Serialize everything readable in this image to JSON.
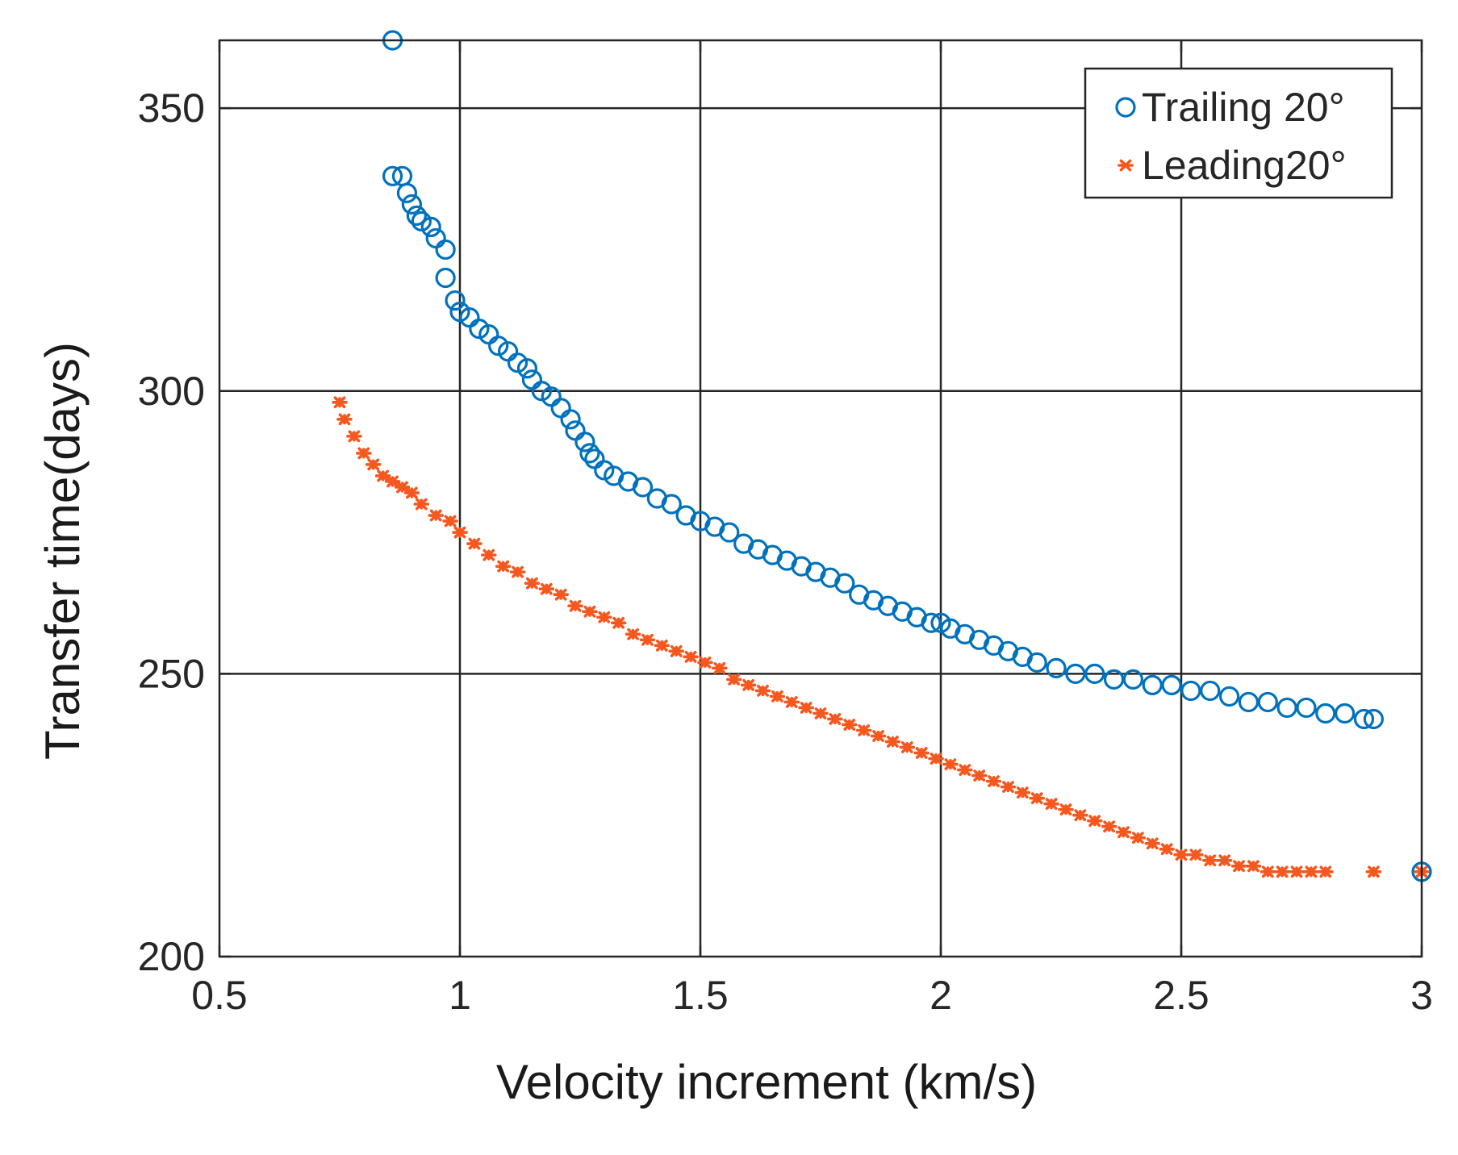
{
  "chart_data": {
    "type": "scatter",
    "title": "",
    "xlabel": "Velocity increment  (km/s)",
    "ylabel": "Transfer time(days)",
    "xlim": [
      0.5,
      3
    ],
    "ylim": [
      200,
      362
    ],
    "xticks": [
      0.5,
      1,
      1.5,
      2,
      2.5,
      3
    ],
    "xtick_labels": [
      "0.5",
      "1",
      "1.5",
      "2",
      "2.5",
      "3"
    ],
    "yticks": [
      200,
      250,
      300,
      350
    ],
    "ytick_labels": [
      "200",
      "250",
      "300",
      "350"
    ],
    "grid": true,
    "legend_position": "top-right",
    "series": [
      {
        "name": "Trailing 20°",
        "marker": "circle",
        "color": "#0072BD",
        "points": [
          [
            0.86,
            362
          ],
          [
            0.86,
            338
          ],
          [
            0.88,
            338
          ],
          [
            0.89,
            335
          ],
          [
            0.9,
            333
          ],
          [
            0.91,
            331
          ],
          [
            0.92,
            330
          ],
          [
            0.94,
            329
          ],
          [
            0.95,
            327
          ],
          [
            0.97,
            325
          ],
          [
            0.97,
            320
          ],
          [
            0.99,
            316
          ],
          [
            1.0,
            314
          ],
          [
            1.02,
            313
          ],
          [
            1.04,
            311
          ],
          [
            1.06,
            310
          ],
          [
            1.08,
            308
          ],
          [
            1.1,
            307
          ],
          [
            1.12,
            305
          ],
          [
            1.14,
            304
          ],
          [
            1.15,
            302
          ],
          [
            1.17,
            300
          ],
          [
            1.19,
            299
          ],
          [
            1.21,
            297
          ],
          [
            1.23,
            295
          ],
          [
            1.24,
            293
          ],
          [
            1.26,
            291
          ],
          [
            1.27,
            289
          ],
          [
            1.28,
            288
          ],
          [
            1.3,
            286
          ],
          [
            1.32,
            285
          ],
          [
            1.35,
            284
          ],
          [
            1.38,
            283
          ],
          [
            1.41,
            281
          ],
          [
            1.44,
            280
          ],
          [
            1.47,
            278
          ],
          [
            1.5,
            277
          ],
          [
            1.53,
            276
          ],
          [
            1.56,
            275
          ],
          [
            1.59,
            273
          ],
          [
            1.62,
            272
          ],
          [
            1.65,
            271
          ],
          [
            1.68,
            270
          ],
          [
            1.71,
            269
          ],
          [
            1.74,
            268
          ],
          [
            1.77,
            267
          ],
          [
            1.8,
            266
          ],
          [
            1.83,
            264
          ],
          [
            1.86,
            263
          ],
          [
            1.89,
            262
          ],
          [
            1.92,
            261
          ],
          [
            1.95,
            260
          ],
          [
            1.98,
            259
          ],
          [
            2.0,
            259
          ],
          [
            2.02,
            258
          ],
          [
            2.05,
            257
          ],
          [
            2.08,
            256
          ],
          [
            2.11,
            255
          ],
          [
            2.14,
            254
          ],
          [
            2.17,
            253
          ],
          [
            2.2,
            252
          ],
          [
            2.24,
            251
          ],
          [
            2.28,
            250
          ],
          [
            2.32,
            250
          ],
          [
            2.36,
            249
          ],
          [
            2.4,
            249
          ],
          [
            2.44,
            248
          ],
          [
            2.48,
            248
          ],
          [
            2.52,
            247
          ],
          [
            2.56,
            247
          ],
          [
            2.6,
            246
          ],
          [
            2.64,
            245
          ],
          [
            2.68,
            245
          ],
          [
            2.72,
            244
          ],
          [
            2.76,
            244
          ],
          [
            2.8,
            243
          ],
          [
            2.84,
            243
          ],
          [
            2.88,
            242
          ],
          [
            2.9,
            242
          ],
          [
            3.0,
            215
          ]
        ]
      },
      {
        "name": "Leading20°",
        "marker": "asterisk",
        "color": "#F5581F",
        "points": [
          [
            0.75,
            298
          ],
          [
            0.76,
            295
          ],
          [
            0.78,
            292
          ],
          [
            0.8,
            289
          ],
          [
            0.82,
            287
          ],
          [
            0.84,
            285
          ],
          [
            0.86,
            284
          ],
          [
            0.88,
            283
          ],
          [
            0.9,
            282
          ],
          [
            0.92,
            280
          ],
          [
            0.95,
            278
          ],
          [
            0.98,
            277
          ],
          [
            1.0,
            275
          ],
          [
            1.03,
            273
          ],
          [
            1.06,
            271
          ],
          [
            1.09,
            269
          ],
          [
            1.12,
            268
          ],
          [
            1.15,
            266
          ],
          [
            1.18,
            265
          ],
          [
            1.21,
            264
          ],
          [
            1.24,
            262
          ],
          [
            1.27,
            261
          ],
          [
            1.3,
            260
          ],
          [
            1.33,
            259
          ],
          [
            1.36,
            257
          ],
          [
            1.39,
            256
          ],
          [
            1.42,
            255
          ],
          [
            1.45,
            254
          ],
          [
            1.48,
            253
          ],
          [
            1.51,
            252
          ],
          [
            1.54,
            251
          ],
          [
            1.57,
            249
          ],
          [
            1.6,
            248
          ],
          [
            1.63,
            247
          ],
          [
            1.66,
            246
          ],
          [
            1.69,
            245
          ],
          [
            1.72,
            244
          ],
          [
            1.75,
            243
          ],
          [
            1.78,
            242
          ],
          [
            1.81,
            241
          ],
          [
            1.84,
            240
          ],
          [
            1.87,
            239
          ],
          [
            1.9,
            238
          ],
          [
            1.93,
            237
          ],
          [
            1.96,
            236
          ],
          [
            1.99,
            235
          ],
          [
            2.02,
            234
          ],
          [
            2.05,
            233
          ],
          [
            2.08,
            232
          ],
          [
            2.11,
            231
          ],
          [
            2.14,
            230
          ],
          [
            2.17,
            229
          ],
          [
            2.2,
            228
          ],
          [
            2.23,
            227
          ],
          [
            2.26,
            226
          ],
          [
            2.29,
            225
          ],
          [
            2.32,
            224
          ],
          [
            2.35,
            223
          ],
          [
            2.38,
            222
          ],
          [
            2.41,
            221
          ],
          [
            2.44,
            220
          ],
          [
            2.47,
            219
          ],
          [
            2.5,
            218
          ],
          [
            2.53,
            218
          ],
          [
            2.56,
            217
          ],
          [
            2.59,
            217
          ],
          [
            2.62,
            216
          ],
          [
            2.65,
            216
          ],
          [
            2.68,
            215
          ],
          [
            2.71,
            215
          ],
          [
            2.74,
            215
          ],
          [
            2.77,
            215
          ],
          [
            2.8,
            215
          ],
          [
            2.9,
            215
          ],
          [
            3.0,
            215
          ]
        ]
      }
    ]
  }
}
